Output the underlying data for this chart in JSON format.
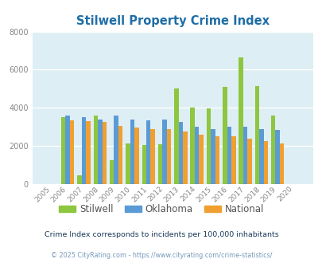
{
  "title": "Stilwell Property Crime Index",
  "years": [
    "2005",
    "2006",
    "2007",
    "2008",
    "2009",
    "2010",
    "2011",
    "2012",
    "2013",
    "2014",
    "2015",
    "2016",
    "2017",
    "2018",
    "2019",
    "2020"
  ],
  "stilwell": [
    0,
    3500,
    450,
    3600,
    1250,
    2150,
    2050,
    2100,
    5000,
    4000,
    3950,
    5100,
    6650,
    5150,
    3600,
    0
  ],
  "oklahoma": [
    0,
    3600,
    3500,
    3400,
    3600,
    3400,
    3350,
    3400,
    3250,
    3000,
    2900,
    3000,
    3000,
    2900,
    2850,
    0
  ],
  "national": [
    0,
    3350,
    3300,
    3250,
    3050,
    2950,
    2900,
    2900,
    2750,
    2600,
    2500,
    2500,
    2400,
    2250,
    2150,
    0
  ],
  "stilwell_color": "#8dc63f",
  "oklahoma_color": "#5b9bd5",
  "national_color": "#f0a030",
  "bg_color": "#deeef5",
  "ylim": [
    0,
    8000
  ],
  "yticks": [
    0,
    2000,
    4000,
    6000,
    8000
  ],
  "title_color": "#1e6ea7",
  "subtitle": "Crime Index corresponds to incidents per 100,000 inhabitants",
  "footer": "© 2025 CityRating.com - https://www.cityrating.com/crime-statistics/",
  "subtitle_color": "#1a3a5c",
  "footer_color": "#7799bb",
  "legend_labels": [
    "Stilwell",
    "Oklahoma",
    "National"
  ],
  "bar_width": 0.27
}
